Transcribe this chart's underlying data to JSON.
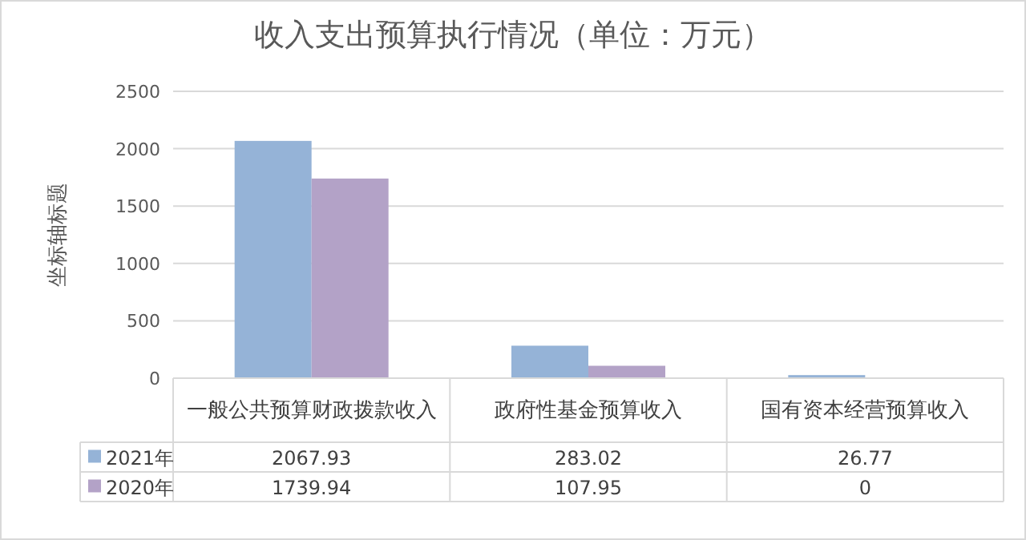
{
  "chart_data": {
    "type": "bar",
    "title": "收入支出预算执行情况（单位：万元）",
    "ylabel": "坐标轴标题",
    "categories": [
      "一般公共预算财政拨款收入",
      "政府性基金预算收入",
      "国有资本经营预算收入"
    ],
    "series": [
      {
        "name": "2021年",
        "color": "#95b3d7",
        "values": [
          2067.93,
          283.02,
          26.77
        ]
      },
      {
        "name": "2020年",
        "color": "#b3a2c7",
        "values": [
          1739.94,
          107.95,
          0
        ]
      }
    ],
    "ylim": [
      0,
      2500
    ],
    "yticks": [
      0,
      500,
      1000,
      1500,
      2000,
      2500
    ],
    "grid": "y",
    "legend": "bottom",
    "data_labels": true
  }
}
